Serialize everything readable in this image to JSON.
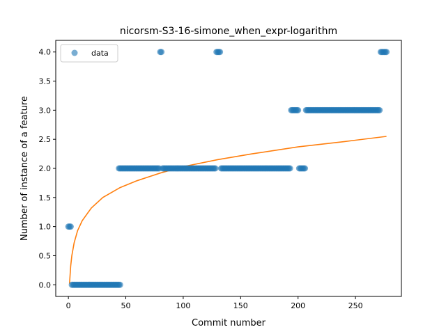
{
  "chart_data": {
    "type": "scatter",
    "title": "nicorsm-S3-16-simone_when_expr-logarithm",
    "xlabel": "Commit number",
    "ylabel": "Number of instance of a feature",
    "xlim": [
      -11,
      290
    ],
    "ylim": [
      -0.2,
      4.2
    ],
    "xticks": [
      0,
      50,
      100,
      150,
      200,
      250
    ],
    "yticks": [
      0.0,
      0.5,
      1.0,
      1.5,
      2.0,
      2.5,
      3.0,
      3.5,
      4.0
    ],
    "xtick_labels": [
      "0",
      "50",
      "100",
      "150",
      "200",
      "250"
    ],
    "ytick_labels": [
      "0.0",
      "0.5",
      "1.0",
      "1.5",
      "2.0",
      "2.5",
      "3.0",
      "3.5",
      "4.0"
    ],
    "legend": {
      "placement": "top-left",
      "entries": [
        "data"
      ]
    },
    "colors": {
      "scatter": "#1f77b4",
      "fit": "#ff7f0e"
    },
    "series": [
      {
        "name": "data",
        "kind": "scatter",
        "segments": [
          {
            "x_from": 0,
            "x_to": 2,
            "y": 1
          },
          {
            "x_from": 3,
            "x_to": 45,
            "y": 0
          },
          {
            "x_from": 44,
            "x_to": 79,
            "y": 2
          },
          {
            "x_from": 80,
            "x_to": 81,
            "y": 4
          },
          {
            "x_from": 82,
            "x_to": 128,
            "y": 2
          },
          {
            "x_from": 129,
            "x_to": 132,
            "y": 4
          },
          {
            "x_from": 133,
            "x_to": 193,
            "y": 2
          },
          {
            "x_from": 194,
            "x_to": 200,
            "y": 3
          },
          {
            "x_from": 201,
            "x_to": 206,
            "y": 2
          },
          {
            "x_from": 207,
            "x_to": 271,
            "y": 3
          },
          {
            "x_from": 272,
            "x_to": 277,
            "y": 4
          }
        ]
      },
      {
        "kind": "line",
        "x": [
          1,
          2,
          3,
          5,
          8,
          12,
          20,
          30,
          45,
          60,
          80,
          100,
          130,
          160,
          200,
          240,
          277
        ],
        "y": [
          0.02,
          0.32,
          0.5,
          0.72,
          0.93,
          1.1,
          1.32,
          1.5,
          1.67,
          1.79,
          1.92,
          2.03,
          2.15,
          2.25,
          2.37,
          2.46,
          2.55
        ]
      }
    ]
  }
}
